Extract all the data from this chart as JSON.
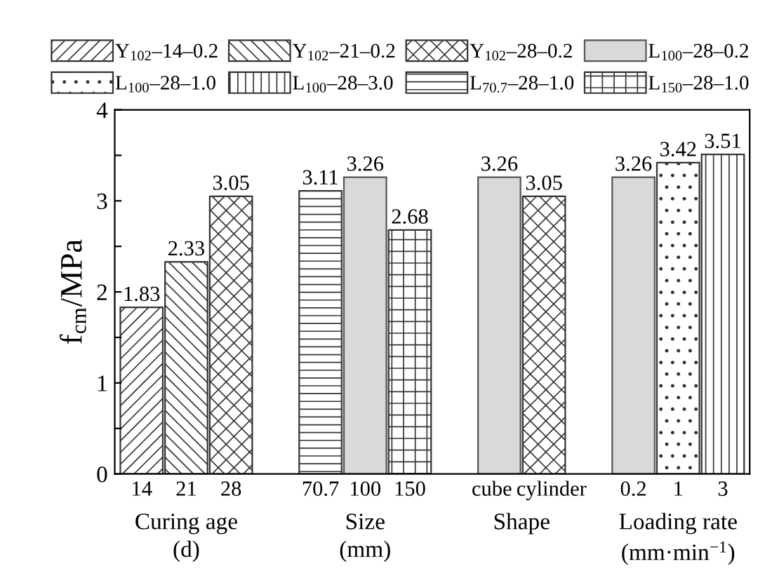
{
  "chart_data": {
    "type": "bar",
    "ylabel": "f$_{cm}$/MPa",
    "categories": [
      "14",
      "21",
      "28",
      null,
      "70.7",
      "100",
      "150",
      null,
      "cube",
      "cylinder",
      null,
      "0.2",
      "1",
      "3"
    ],
    "series": [
      {
        "name": "Y$_{102}$–14–0.2",
        "color": "#333333",
        "values": [
          1.83,
          null,
          null,
          null,
          null,
          null,
          null,
          null,
          null,
          null,
          null,
          null,
          null,
          null
        ]
      },
      {
        "name": "Y$_{102}$–21–0.2",
        "color": "#333333",
        "values": [
          null,
          2.33,
          null,
          null,
          null,
          null,
          null,
          null,
          null,
          null,
          null,
          null,
          null,
          null
        ]
      },
      {
        "name": "Y$_{102}$–28–0.2",
        "color": "#333333",
        "values": [
          null,
          null,
          3.05,
          null,
          null,
          null,
          null,
          null,
          null,
          3.05,
          null,
          null,
          null,
          null
        ]
      },
      {
        "name": "L$_{100}$–28–0.2",
        "color": "#d9d9d9",
        "values": [
          null,
          null,
          null,
          null,
          null,
          3.26,
          null,
          null,
          3.26,
          null,
          null,
          3.26,
          null,
          null
        ]
      },
      {
        "name": "L$_{100}$–28–1.0",
        "color": "#333333",
        "values": [
          null,
          null,
          null,
          null,
          null,
          null,
          null,
          null,
          null,
          null,
          null,
          null,
          3.42,
          null
        ]
      },
      {
        "name": "L$_{100}$–28–3.0",
        "color": "#333333",
        "values": [
          null,
          null,
          null,
          null,
          null,
          null,
          null,
          null,
          null,
          null,
          null,
          null,
          null,
          3.51
        ]
      },
      {
        "name": "L$_{70.7}$–28–1.0",
        "color": "#333333",
        "values": [
          null,
          null,
          null,
          null,
          3.11,
          null,
          null,
          null,
          null,
          null,
          null,
          null,
          null,
          null
        ]
      },
      {
        "name": "L$_{150}$–28–1.0",
        "color": "#333333",
        "values": [
          null,
          null,
          null,
          null,
          null,
          null,
          2.68,
          null,
          null,
          null,
          null,
          null,
          null,
          null
        ]
      }
    ],
    "ylim": [
      0,
      4
    ],
    "yticks": [
      0,
      {
        "value": 0.5,
        "label": null
      },
      1,
      {
        "value": 1.5,
        "label": null
      },
      2,
      {
        "value": 2.5,
        "label": null
      },
      3,
      {
        "value": 3.5,
        "label": null
      },
      4
    ],
    "data_labels": true,
    "legend": "top",
    "grid": false,
    "annotations": [
      "Curing age\n(d)",
      "Size\n(mm)",
      "Shape",
      "Loading rate\n(mm·min$^{−1}$)"
    ]
  }
}
